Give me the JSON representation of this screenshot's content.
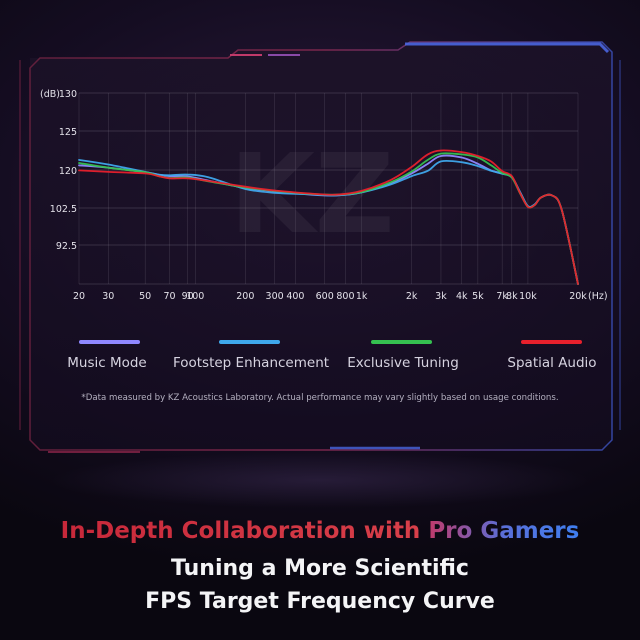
{
  "colors": {
    "music_mode": "#8f88ff",
    "footstep_enhancement": "#3fa8ec",
    "exclusive_tuning": "#35c050",
    "spatial_audio": "#e8202c",
    "frame_accent": "#3a56c8",
    "frame_primary": "#8a2448"
  },
  "chart_data": {
    "type": "line",
    "ylabel": "(dB)",
    "xlabel": "(Hz)",
    "y_ticks": [
      "130",
      "125",
      "120",
      "102.5",
      "92.5"
    ],
    "x_tick_labels": [
      "20",
      "30",
      "50",
      "70",
      "90",
      "100",
      "200",
      "300",
      "400",
      "600",
      "800",
      "1k",
      "2k",
      "3k",
      "4k",
      "5k",
      "7k",
      "8k",
      "10k",
      "20k"
    ],
    "x_tick_values": [
      20,
      30,
      50,
      70,
      90,
      100,
      200,
      300,
      400,
      600,
      800,
      1000,
      2000,
      3000,
      4000,
      5000,
      7000,
      8000,
      10000,
      20000
    ],
    "x_log": true,
    "grid": true,
    "legend_placement": "below",
    "series": [
      {
        "name": "Music Mode",
        "color_key": "music_mode",
        "x": [
          20,
          30,
          50,
          60,
          70,
          90,
          120,
          200,
          300,
          500,
          700,
          1000,
          1500,
          2000,
          2500,
          3000,
          4000,
          5000,
          6000,
          7000,
          8000,
          9000,
          10000,
          11000,
          12000,
          14000,
          16000,
          20000
        ],
        "y": [
          120.6,
          120.3,
          119.4,
          118.8,
          118.4,
          118.3,
          117.2,
          115.3,
          114.4,
          113.5,
          113.3,
          114.1,
          116.6,
          119.1,
          120.8,
          121.8,
          121.6,
          120.8,
          119.9,
          119.1,
          118.2,
          114.0,
          110.4,
          110.9,
          112.8,
          113.3,
          109.6,
          97.4
        ]
      },
      {
        "name": "Footstep Enhancement",
        "color_key": "footstep_enhancement",
        "x": [
          20,
          30,
          50,
          60,
          70,
          90,
          120,
          200,
          300,
          500,
          700,
          1000,
          1500,
          2000,
          2500,
          3000,
          4000,
          5000,
          6000,
          7000,
          8000,
          9000,
          10000,
          11000,
          12000,
          14000,
          16000,
          20000
        ],
        "y": [
          121.3,
          120.7,
          119.5,
          118.8,
          118.6,
          118.8,
          118.1,
          115.0,
          114.0,
          113.6,
          113.3,
          114.1,
          116.2,
          118.4,
          119.8,
          121.1,
          121.0,
          120.5,
          119.8,
          119.0,
          118.1,
          114.1,
          110.5,
          111.0,
          112.8,
          113.3,
          109.6,
          97.4
        ]
      },
      {
        "name": "Exclusive Tuning",
        "color_key": "exclusive_tuning",
        "x": [
          20,
          30,
          50,
          60,
          70,
          90,
          120,
          200,
          300,
          500,
          700,
          1000,
          1500,
          2000,
          2500,
          3000,
          4000,
          5000,
          6000,
          7000,
          8000,
          9000,
          10000,
          11000,
          12000,
          14000,
          16000,
          20000
        ],
        "y": [
          120.9,
          120.3,
          119.4,
          118.4,
          117.9,
          118.0,
          117.0,
          115.4,
          114.5,
          113.7,
          113.5,
          114.2,
          116.8,
          119.6,
          121.3,
          122.1,
          122.0,
          121.6,
          120.6,
          119.2,
          118.0,
          113.7,
          110.3,
          110.8,
          112.8,
          113.3,
          109.6,
          97.4
        ]
      },
      {
        "name": "Spatial Audio",
        "color_key": "spatial_audio",
        "x": [
          20,
          30,
          50,
          60,
          70,
          90,
          120,
          200,
          300,
          500,
          700,
          1000,
          1500,
          2000,
          2500,
          3000,
          4000,
          5000,
          6000,
          7000,
          8000,
          9000,
          10000,
          11000,
          12000,
          14000,
          16000,
          20000
        ],
        "y": [
          119.9,
          119.5,
          119.1,
          118.4,
          117.8,
          117.8,
          117.1,
          115.6,
          114.6,
          113.8,
          113.5,
          114.5,
          117.4,
          120.4,
          122.0,
          122.5,
          122.3,
          121.8,
          121.1,
          119.7,
          118.4,
          113.8,
          110.3,
          110.8,
          112.8,
          113.3,
          109.6,
          97.4
        ]
      }
    ]
  },
  "watermark": "KZ",
  "footnote": "*Data measured by KZ Acoustics Laboratory. Actual performance may vary slightly based on usage conditions.",
  "headline": {
    "part1": "In-Depth Collaboration with ",
    "part2": "Pro Gamers",
    "line2": "Tuning a More Scientific",
    "line3": "FPS Target Frequency Curve"
  }
}
